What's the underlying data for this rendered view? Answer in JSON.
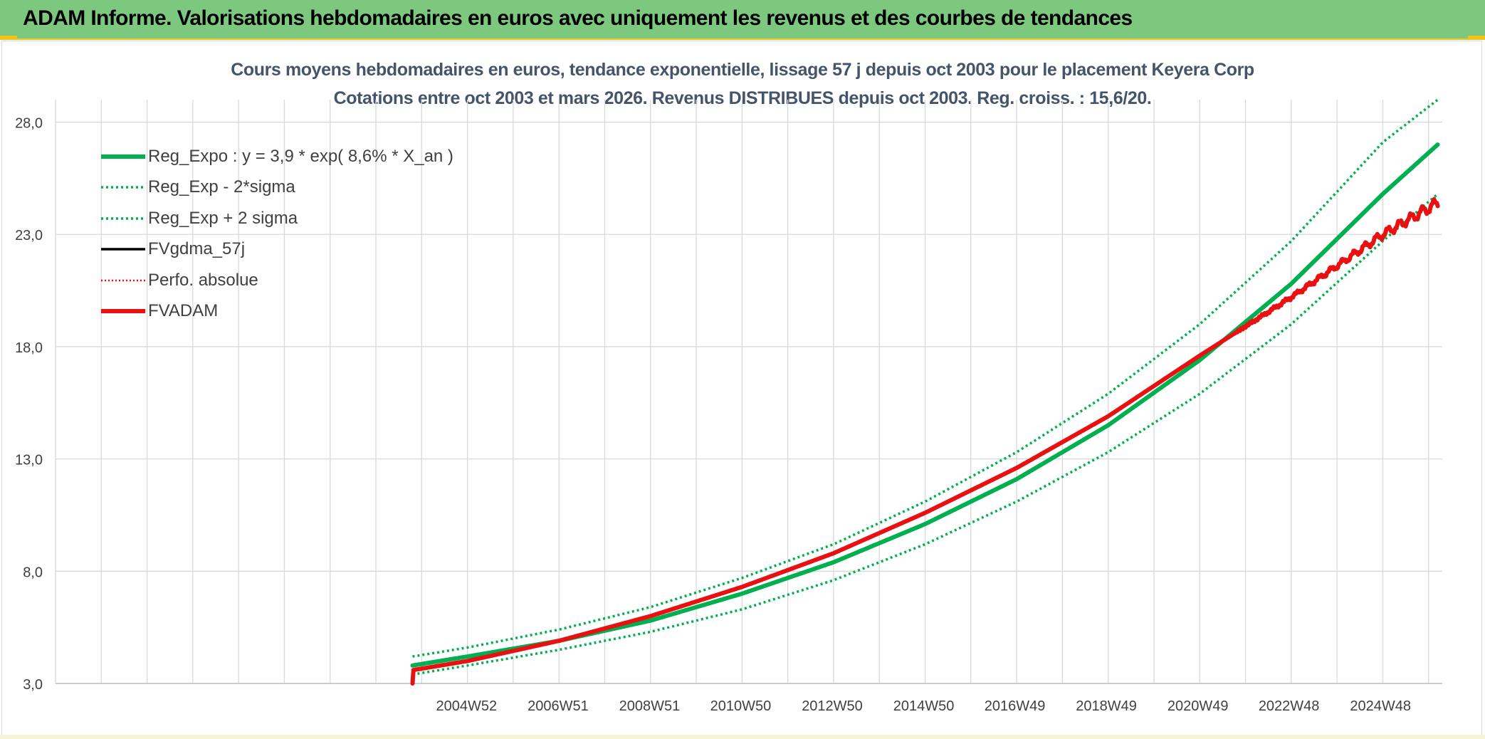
{
  "header": {
    "title": "ADAM Informe. Valorisations hebdomadaires en euros avec uniquement les revenus et des courbes de tendances"
  },
  "colors": {
    "banner": "#7dc87f",
    "accent_yellow": "#f0c419",
    "trend_green": "#00b050",
    "adam_red": "#e81010",
    "grid": "#d9d9d9",
    "title_text": "#44546a"
  },
  "chart_data": {
    "type": "line",
    "title_line1": "Cours moyens hebdomadaires en euros, tendance exponentielle, lissage 57 j depuis oct 2003 pour le placement Keyera Corp",
    "title_line2": "Cotations entre oct 2003 et mars 2026. Revenus DISTRIBUES depuis oct 2003. Reg. croiss. : 15,6/20.",
    "xlabel": "",
    "ylabel": "",
    "ylim": [
      3.0,
      29.0
    ],
    "yticks": [
      "28,0",
      "23,0",
      "18,0",
      "13,0",
      "8,0",
      "3,0"
    ],
    "ytick_values": [
      28,
      23,
      18,
      13,
      8,
      3
    ],
    "xticks": [
      "2004W52",
      "2006W51",
      "2008W51",
      "2010W50",
      "2012W50",
      "2014W50",
      "2016W49",
      "2018W49",
      "2020W49",
      "2022W48",
      "2024W48"
    ],
    "xtick_years": [
      2004.98,
      2006.98,
      2008.98,
      2010.97,
      2012.97,
      2014.97,
      2016.96,
      2018.96,
      2020.96,
      2022.95,
      2024.95
    ],
    "xlim": [
      1996.0,
      2026.3
    ],
    "grid": true,
    "legend_position": "top-left",
    "series": [
      {
        "name": "Reg_Expo : y = 3,9 * exp( 8,6% *  X_an )",
        "style": "solid-thick",
        "color": "#00b050",
        "x": [
          2003.8,
          2005,
          2007,
          2009,
          2011,
          2013,
          2015,
          2017,
          2019,
          2021,
          2023,
          2025,
          2026.2
        ],
        "values": [
          3.8,
          4.2,
          4.9,
          5.8,
          7.0,
          8.4,
          10.1,
          12.1,
          14.5,
          17.4,
          20.8,
          24.8,
          27.0
        ]
      },
      {
        "name": "Reg_Exp - 2*sigma",
        "style": "dotted",
        "color": "#00b050",
        "x": [
          2003.8,
          2005,
          2007,
          2009,
          2011,
          2013,
          2015,
          2017,
          2019,
          2021,
          2023,
          2025,
          2026.2
        ],
        "values": [
          3.4,
          3.8,
          4.5,
          5.3,
          6.3,
          7.6,
          9.2,
          11.1,
          13.3,
          15.9,
          19.0,
          22.7,
          24.8
        ]
      },
      {
        "name": "Reg_Exp + 2 sigma",
        "style": "dotted",
        "color": "#00b050",
        "x": [
          2003.8,
          2005,
          2007,
          2009,
          2011,
          2013,
          2015,
          2017,
          2019,
          2021,
          2023,
          2025,
          2026.2
        ],
        "values": [
          4.2,
          4.6,
          5.4,
          6.4,
          7.7,
          9.2,
          11.1,
          13.3,
          15.9,
          19.0,
          22.7,
          27.1,
          29.0
        ]
      },
      {
        "name": "FVgdma_57j",
        "style": "solid",
        "color": "#000000",
        "x": [],
        "values": []
      },
      {
        "name": "Perfo. absolue",
        "style": "dotted",
        "color": "#e81010",
        "x": [],
        "values": []
      },
      {
        "name": "FVADAM",
        "style": "solid-thick",
        "color": "#e81010",
        "x": [
          2003.8,
          2003.82,
          2005,
          2007,
          2009,
          2011,
          2013,
          2015,
          2017,
          2019,
          2021,
          2022,
          2023,
          2024,
          2025,
          2026.2
        ],
        "values": [
          3.0,
          3.6,
          4.0,
          4.9,
          6.0,
          7.3,
          8.8,
          10.6,
          12.6,
          14.9,
          17.6,
          18.9,
          20.2,
          21.6,
          23.0,
          24.4
        ]
      }
    ]
  }
}
